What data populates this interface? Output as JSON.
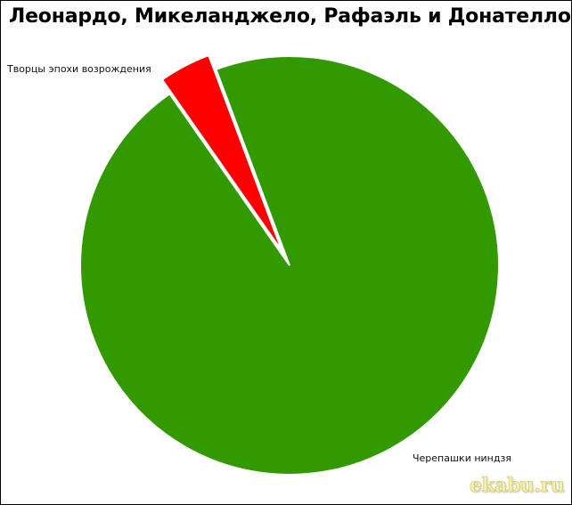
{
  "chart_data": {
    "type": "pie",
    "title": "Леонардо, Микеланджело, Рафаэль и Донателло",
    "slices": [
      {
        "label": "Черепашки ниндзя",
        "value": 96,
        "color": "#339900"
      },
      {
        "label": "Творцы эпохи возрождения",
        "value": 4,
        "color": "#ff0000",
        "exploded": true
      }
    ],
    "legend": "none"
  },
  "watermark": "ekabu.ru"
}
